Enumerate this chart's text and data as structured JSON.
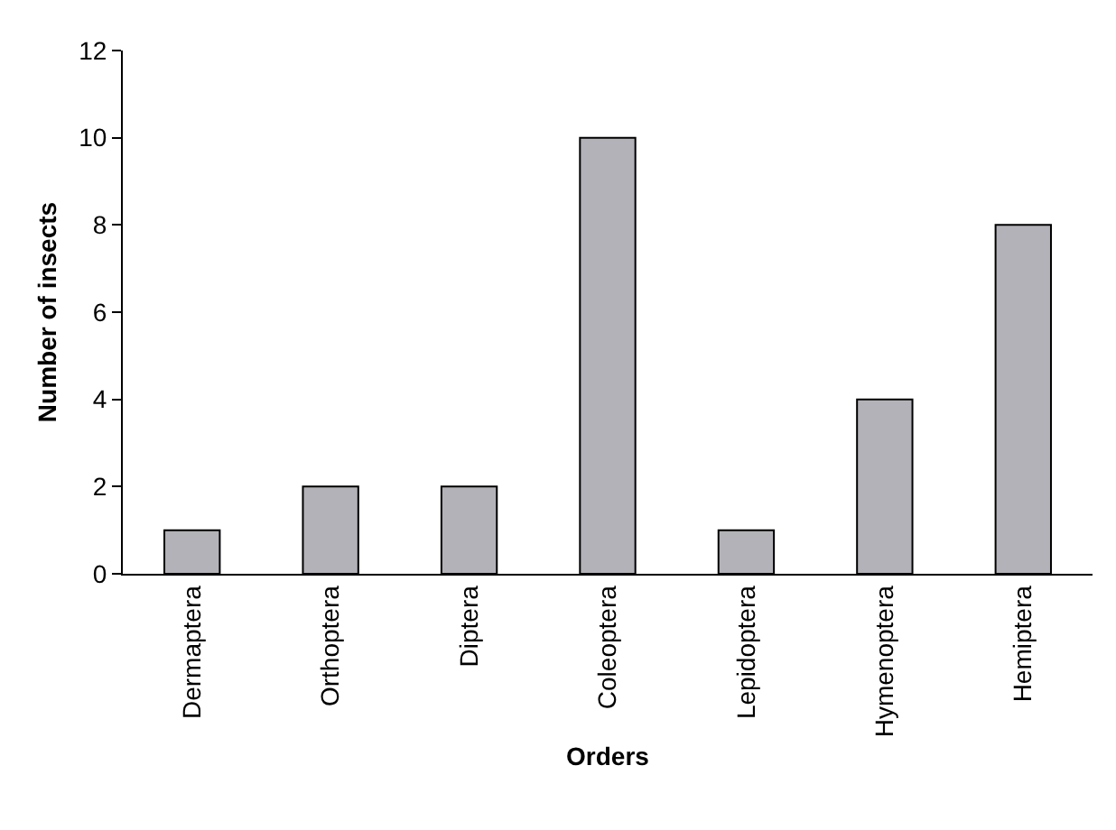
{
  "chart_data": {
    "type": "bar",
    "xlabel": "Orders",
    "ylabel": "Number of insects",
    "categories": [
      "Dermaptera",
      "Orthoptera",
      "Diptera",
      "Coleoptera",
      "Lepidoptera",
      "Hymenoptera",
      "Hemiptera"
    ],
    "values": [
      1,
      2,
      2,
      10,
      1,
      4,
      8
    ],
    "color": "#b2b2b8",
    "ylim": [
      0,
      12
    ],
    "yticks": [
      0,
      2,
      4,
      6,
      8,
      10,
      12
    ],
    "grid": false
  }
}
